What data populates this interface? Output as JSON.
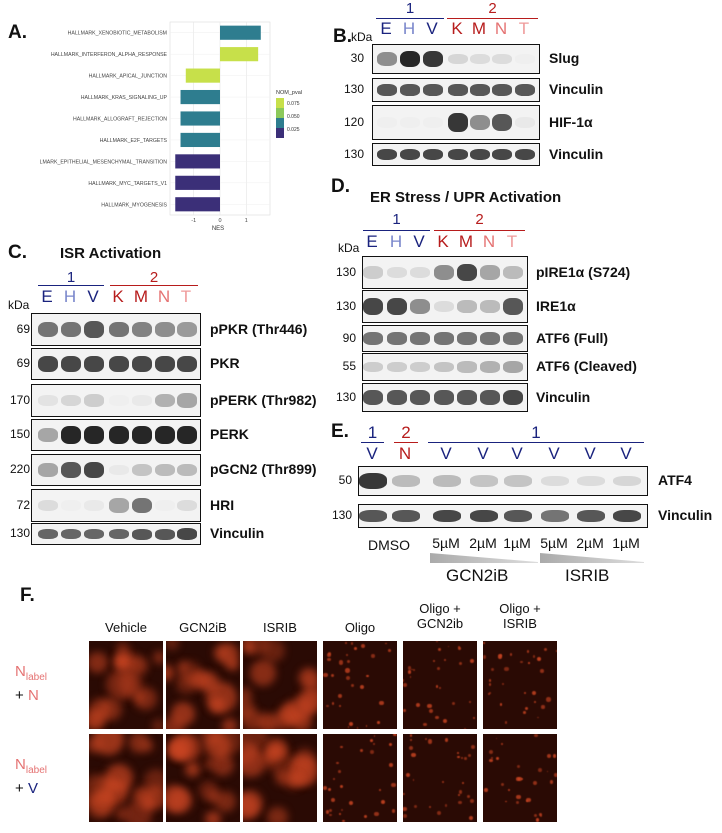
{
  "panels": {
    "a": "A.",
    "b": "B.",
    "c": "C.",
    "d": "D.",
    "e": "E.",
    "f": "F."
  },
  "colors": {
    "group1": "#1a237e",
    "group2": "#b71c1c",
    "lane_E": "#1a237e",
    "lane_H": "#7986cb",
    "lane_V": "#1a237e",
    "lane_K": "#b71c1c",
    "lane_M": "#b71c1c",
    "lane_N": "#e57373",
    "lane_T": "#ef9a9a",
    "bar_low": "#3b2f78",
    "bar_mid": "#2e7d8f",
    "bar_high": "#c7e04a"
  },
  "gsea": {
    "chart_data": {
      "type": "bar",
      "orientation": "horizontal",
      "categories": [
        "HALLMARK_XENOBIOTIC_METABOLISM",
        "HALLMARK_INTERFERON_ALPHA_RESPONSE",
        "HALLMARK_APICAL_JUNCTION",
        "HALLMARK_KRAS_SIGNALING_UP",
        "HALLMARK_ALLOGRAFT_REJECTION",
        "HALLMARK_E2F_TARGETS",
        "HALLMARK_EPITHELIAL_MESENCHYMAL_TRANSITION",
        "HALLMARK_MYC_TARGETS_V1",
        "HALLMARK_MYOGENESIS"
      ],
      "values": [
        1.55,
        1.45,
        -1.3,
        -1.5,
        -1.5,
        -1.5,
        -1.7,
        -1.7,
        -1.7
      ],
      "nom_pval": [
        0.05,
        0.075,
        0.075,
        0.05,
        0.05,
        0.05,
        0.02,
        0.02,
        0.02
      ],
      "xlim": [
        -1.9,
        1.9
      ],
      "xticks": [
        "-1",
        "0",
        "1"
      ],
      "xlabel": "NES",
      "legend_title": "NOM_pval",
      "legend_values": [
        "0.075",
        "0.050",
        "0.025"
      ],
      "legend_placement": "right",
      "grid": true
    }
  },
  "kda": "kDa",
  "group_labels": {
    "g1": "1",
    "g2": "2"
  },
  "lanes7": [
    "E",
    "H",
    "V",
    "K",
    "M",
    "N",
    "T"
  ],
  "panel_b": {
    "blots": [
      {
        "label": "Slug",
        "mw": "30"
      },
      {
        "label": "Vinculin",
        "mw": "130"
      },
      {
        "label": "HIF-1α",
        "mw": "120"
      },
      {
        "label": "Vinculin",
        "mw": "130"
      }
    ],
    "levels": [
      [
        0.6,
        0.95,
        0.9,
        0.25,
        0.2,
        0.2,
        0.05
      ],
      [
        0.8,
        0.8,
        0.8,
        0.8,
        0.8,
        0.8,
        0.8
      ],
      [
        0.05,
        0.05,
        0.05,
        0.9,
        0.6,
        0.8,
        0.1
      ],
      [
        0.85,
        0.85,
        0.85,
        0.85,
        0.85,
        0.85,
        0.85
      ]
    ]
  },
  "panel_c": {
    "title": "ISR Activation",
    "blots": [
      {
        "label": "pPKR (Thr446)",
        "mw": "69"
      },
      {
        "label": "PKR",
        "mw": "69"
      },
      {
        "label": "pPERK (Thr982)",
        "mw": "170"
      },
      {
        "label": "PERK",
        "mw": "150"
      },
      {
        "label": "pGCN2 (Thr899)",
        "mw": "220"
      },
      {
        "label": "HRI",
        "mw": "72"
      },
      {
        "label": "Vinculin",
        "mw": "130"
      }
    ],
    "levels": [
      [
        0.7,
        0.7,
        0.8,
        0.7,
        0.65,
        0.6,
        0.55
      ],
      [
        0.85,
        0.85,
        0.85,
        0.85,
        0.85,
        0.85,
        0.85
      ],
      [
        0.15,
        0.25,
        0.3,
        0.05,
        0.1,
        0.45,
        0.5
      ],
      [
        0.5,
        0.95,
        0.95,
        0.95,
        0.95,
        0.95,
        0.95
      ],
      [
        0.5,
        0.8,
        0.85,
        0.1,
        0.35,
        0.4,
        0.4
      ],
      [
        0.2,
        0.05,
        0.1,
        0.5,
        0.7,
        0.05,
        0.2
      ],
      [
        0.75,
        0.75,
        0.75,
        0.75,
        0.8,
        0.8,
        0.85
      ]
    ]
  },
  "panel_d": {
    "title": "ER Stress / UPR Activation",
    "blots": [
      {
        "label": "pIRE1α (S724)",
        "mw": "130"
      },
      {
        "label": "IRE1α",
        "mw": "130"
      },
      {
        "label": "ATF6 (Full)",
        "mw": "90"
      },
      {
        "label": "ATF6 (Cleaved)",
        "mw": "55"
      },
      {
        "label": "Vinculin",
        "mw": "130"
      }
    ],
    "levels": [
      [
        0.3,
        0.2,
        0.2,
        0.6,
        0.85,
        0.5,
        0.4
      ],
      [
        0.85,
        0.85,
        0.6,
        0.2,
        0.4,
        0.4,
        0.8
      ],
      [
        0.7,
        0.7,
        0.7,
        0.7,
        0.7,
        0.7,
        0.7
      ],
      [
        0.3,
        0.3,
        0.3,
        0.35,
        0.4,
        0.45,
        0.5
      ],
      [
        0.8,
        0.8,
        0.8,
        0.8,
        0.8,
        0.8,
        0.85
      ]
    ]
  },
  "panel_e": {
    "group_labels": [
      "1",
      "2",
      "1"
    ],
    "lanes": [
      "V",
      "N",
      "V",
      "V",
      "V",
      "V",
      "V",
      "V"
    ],
    "blots": [
      {
        "label": "ATF4",
        "mw": "50"
      },
      {
        "label": "Vinculin",
        "mw": "130"
      }
    ],
    "levels": [
      [
        0.9,
        0.4,
        0.4,
        0.35,
        0.35,
        0.2,
        0.2,
        0.25
      ],
      [
        0.8,
        0.8,
        0.85,
        0.85,
        0.8,
        0.7,
        0.8,
        0.85
      ]
    ],
    "control": "DMSO",
    "doses": [
      "5µM",
      "2µM",
      "1µM",
      "5µM",
      "2µM",
      "1µM"
    ],
    "drug1": "GCN2iB",
    "drug2": "ISRIB"
  },
  "panel_f": {
    "columns": [
      "Vehicle",
      "GCN2iB",
      "ISRIB",
      "Oligo",
      "Oligo +\nGCN2ib",
      "Oligo +\nISRIB"
    ],
    "rows": [
      {
        "main": "N",
        "sub": "label",
        "plus": "+ N"
      },
      {
        "main": "N",
        "sub": "label",
        "plus": "+ V"
      }
    ]
  }
}
